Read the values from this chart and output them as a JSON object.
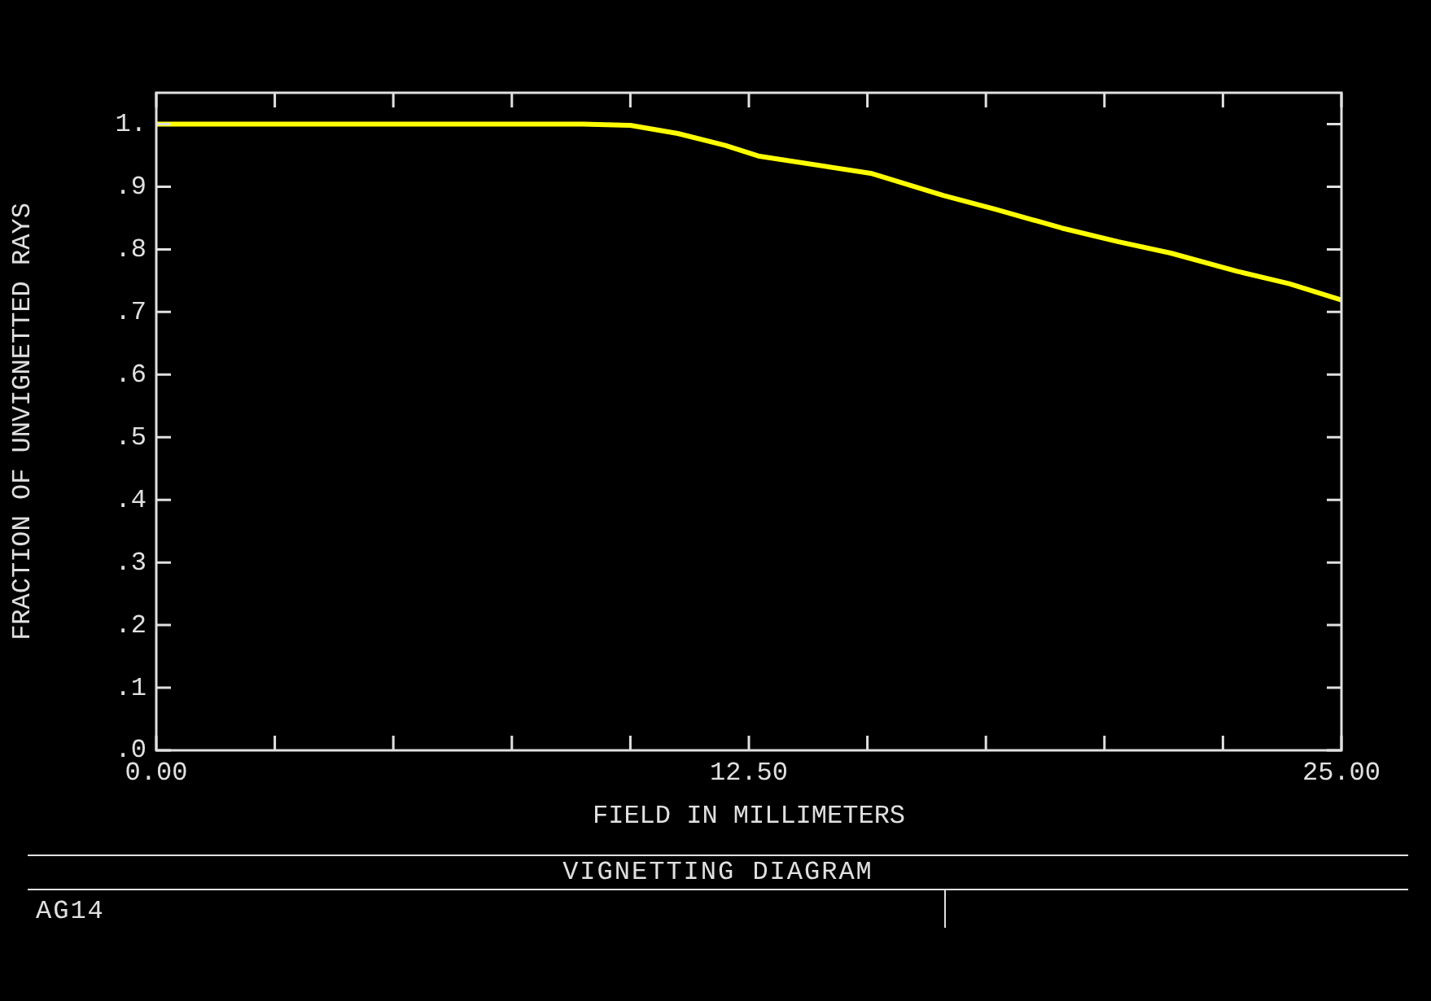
{
  "chart_data": {
    "type": "line",
    "title": "VIGNETTING DIAGRAM",
    "xlabel": "FIELD IN MILLIMETERS",
    "ylabel": "FRACTION OF UNVIGNETTED RAYS",
    "annotations": [
      "AG14"
    ],
    "x": [
      0,
      9.0,
      10.0,
      11.0,
      12.0,
      12.7,
      15.1,
      16.6,
      17.7,
      19.1,
      20.3,
      21.4,
      22.8,
      23.9,
      25.0
    ],
    "series": [
      {
        "color": "#ffff00",
        "values": [
          1.0,
          1.0,
          0.998,
          0.985,
          0.966,
          0.949,
          0.921,
          0.886,
          0.864,
          0.834,
          0.812,
          0.794,
          0.765,
          0.745,
          0.719
        ]
      }
    ],
    "xlim": [
      0,
      25
    ],
    "xticks": [
      {
        "value": 0,
        "label": "0.00"
      },
      {
        "value": 2.5,
        "label": null
      },
      {
        "value": 5,
        "label": null
      },
      {
        "value": 7.5,
        "label": null
      },
      {
        "value": 10,
        "label": null
      },
      {
        "value": 12.5,
        "label": "12.50"
      },
      {
        "value": 15,
        "label": null
      },
      {
        "value": 17.5,
        "label": null
      },
      {
        "value": 20,
        "label": null
      },
      {
        "value": 22.5,
        "label": null
      },
      {
        "value": 25,
        "label": "25.00"
      }
    ],
    "ylim": [
      0,
      1.05
    ],
    "yticks": [
      {
        "value": 0,
        "label": ".0"
      },
      {
        "value": 0.1,
        "label": ".1"
      },
      {
        "value": 0.2,
        "label": ".2"
      },
      {
        "value": 0.3,
        "label": ".3"
      },
      {
        "value": 0.4,
        "label": ".4"
      },
      {
        "value": 0.5,
        "label": ".5"
      },
      {
        "value": 0.6,
        "label": ".6"
      },
      {
        "value": 0.7,
        "label": ".7"
      },
      {
        "value": 0.8,
        "label": ".8"
      },
      {
        "value": 0.9,
        "label": ".9"
      },
      {
        "value": 1,
        "label": "1."
      }
    ],
    "grid": false,
    "legend": false,
    "marker": "none",
    "line_style": "solid"
  }
}
